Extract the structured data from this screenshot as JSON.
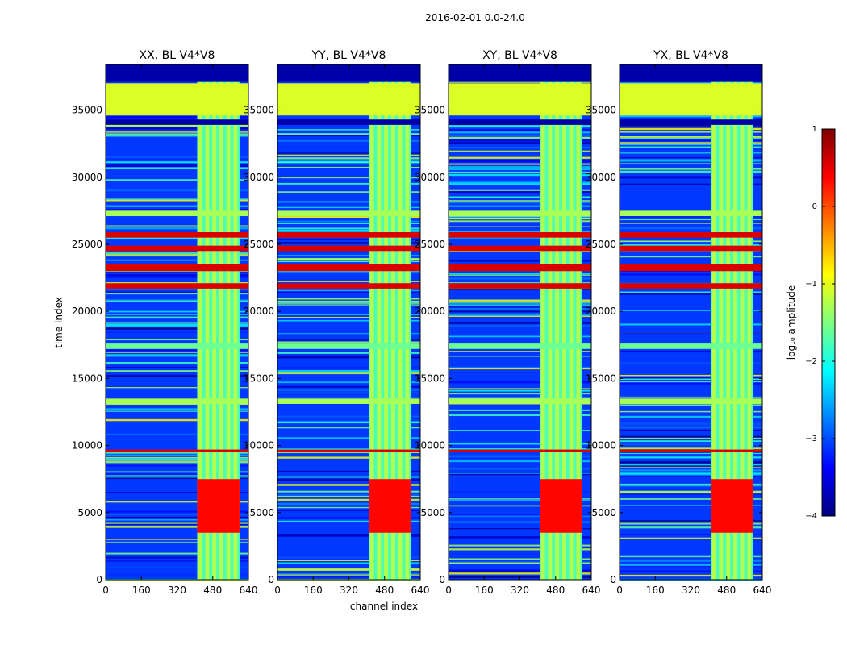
{
  "figure": {
    "suptitle": "2016-02-01 0.0-24.0",
    "xlabel": "channel index",
    "ylabel": "time index"
  },
  "colorbar": {
    "label": "log₁₀ amplitude",
    "ticks": [
      1,
      0,
      -1,
      -2,
      -3,
      -4
    ],
    "tick_labels": [
      "1",
      "0",
      "−1",
      "−2",
      "−3",
      "−4"
    ],
    "stops": [
      "#00007f",
      "#0000ff",
      "#007fff",
      "#00ffff",
      "#7fff7f",
      "#ffff00",
      "#ff7f00",
      "#ff0000",
      "#7f0000"
    ]
  },
  "chart_data": {
    "type": "heatmap",
    "x_range": [
      0,
      640
    ],
    "y_range": [
      0,
      38400
    ],
    "x_ticks": [
      0,
      160,
      320,
      480,
      640
    ],
    "y_ticks": [
      0,
      5000,
      10000,
      15000,
      20000,
      25000,
      30000,
      35000
    ],
    "value_range": [
      -4,
      1
    ],
    "rfi_channels": [
      410,
      600
    ],
    "panels": [
      {
        "title": "XX, BL V4*V8"
      },
      {
        "title": "YY, BL V4*V8"
      },
      {
        "title": "XY, BL V4*V8"
      },
      {
        "title": "YX, BL V4*V8"
      }
    ],
    "bands": [
      {
        "y": [
          34600,
          37000
        ],
        "value": -1.05
      },
      {
        "y": [
          27100,
          27500
        ],
        "value": -1.3
      },
      {
        "y": [
          25500,
          25900
        ],
        "value": 0.55
      },
      {
        "y": [
          24500,
          24900
        ],
        "value": 0.55
      },
      {
        "y": [
          23000,
          23500
        ],
        "value": 0.55
      },
      {
        "y": [
          21700,
          22100
        ],
        "value": 0.55
      },
      {
        "y": [
          17200,
          17600
        ],
        "value": -1.6
      },
      {
        "y": [
          13100,
          13500
        ],
        "value": -1.3
      },
      {
        "y": [
          9500,
          9700
        ],
        "value": 0.55
      },
      {
        "y": [
          37100,
          38400
        ],
        "value": -3.8
      },
      {
        "y": [
          33900,
          34300
        ],
        "value": -3.8
      }
    ]
  }
}
